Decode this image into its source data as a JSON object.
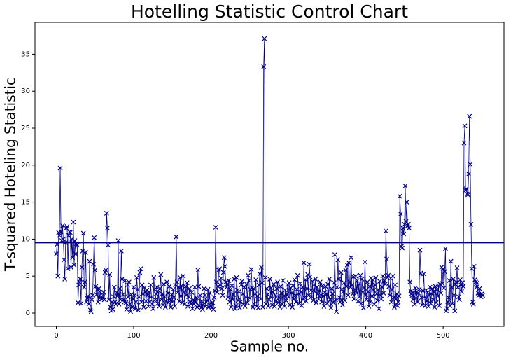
{
  "chart_data": {
    "type": "line",
    "title": "Hotelling Statistic Control Chart",
    "xlabel": "Sample no.",
    "ylabel": "T-squared Hoteling Statistic",
    "xlim": [
      -27.6,
      578.6
    ],
    "ylim": [
      -1.8,
      39.3
    ],
    "xticks": [
      0,
      100,
      200,
      300,
      400,
      500
    ],
    "yticks": [
      0,
      5,
      10,
      15,
      20,
      25,
      30,
      35
    ],
    "hline": 9.5,
    "hline_color": "#00007f",
    "marker": "x",
    "series": [
      {
        "color": "#00008b",
        "x": [
          0,
          1,
          2,
          3,
          4,
          5,
          6,
          7,
          8,
          9,
          10,
          11,
          12,
          13,
          14,
          15,
          16,
          17,
          18,
          19,
          20,
          21,
          22,
          23,
          24,
          25,
          26,
          27,
          28,
          29,
          30,
          31,
          32,
          33,
          34,
          35,
          36,
          37,
          38,
          39,
          40,
          41,
          42,
          43,
          44,
          45,
          46,
          47,
          48,
          49,
          50,
          51,
          52,
          53,
          54,
          55,
          56,
          57,
          58,
          59,
          60,
          61,
          62,
          63,
          64,
          65,
          66,
          67,
          68,
          69,
          70,
          71,
          72,
          73,
          74,
          75,
          76,
          77,
          78,
          79,
          80,
          81,
          82,
          83,
          84,
          85,
          86,
          87,
          88,
          89,
          90,
          91,
          92,
          93,
          94,
          95,
          96,
          97,
          98,
          99,
          100,
          101,
          102,
          103,
          104,
          105,
          106,
          107,
          108,
          109,
          110,
          111,
          112,
          113,
          114,
          115,
          116,
          117,
          118,
          119,
          120,
          121,
          122,
          123,
          124,
          125,
          126,
          127,
          128,
          129,
          130,
          131,
          132,
          133,
          134,
          135,
          136,
          137,
          138,
          139,
          140,
          141,
          142,
          143,
          144,
          145,
          146,
          147,
          148,
          149,
          150,
          151,
          152,
          153,
          154,
          155,
          156,
          157,
          158,
          159,
          160,
          161,
          162,
          163,
          164,
          165,
          166,
          167,
          168,
          169,
          170,
          171,
          172,
          173,
          174,
          175,
          176,
          177,
          178,
          179,
          180,
          181,
          182,
          183,
          184,
          185,
          186,
          187,
          188,
          189,
          190,
          191,
          192,
          193,
          194,
          195,
          196,
          197,
          198,
          199,
          200,
          201,
          202,
          203,
          204,
          205,
          206,
          207,
          208,
          209,
          210,
          211,
          212,
          213,
          214,
          215,
          216,
          217,
          218,
          219,
          220,
          221,
          222,
          223,
          224,
          225,
          226,
          227,
          228,
          229,
          230,
          231,
          232,
          233,
          234,
          235,
          236,
          237,
          238,
          239,
          240,
          241,
          242,
          243,
          244,
          245,
          246,
          247,
          248,
          249,
          250,
          251,
          252,
          253,
          254,
          255,
          256,
          257,
          258,
          259,
          260,
          261,
          262,
          263,
          264,
          265,
          266,
          267,
          268,
          269,
          270,
          271,
          272,
          273,
          274,
          275,
          276,
          277,
          278,
          279,
          280,
          281,
          282,
          283,
          284,
          285,
          286,
          287,
          288,
          289,
          290,
          291,
          292,
          293,
          294,
          295,
          296,
          297,
          298,
          299,
          300,
          301,
          302,
          303,
          304,
          305,
          306,
          307,
          308,
          309,
          310,
          311,
          312,
          313,
          314,
          315,
          316,
          317,
          318,
          319,
          320,
          321,
          322,
          323,
          324,
          325,
          326,
          327,
          328,
          329,
          330,
          331,
          332,
          333,
          334,
          335,
          336,
          337,
          338,
          339,
          340,
          341,
          342,
          343,
          344,
          345,
          346,
          347,
          348,
          349,
          350,
          351,
          352,
          353,
          354,
          355,
          356,
          357,
          358,
          359,
          360,
          361,
          362,
          363,
          364,
          365,
          366,
          367,
          368,
          369,
          370,
          371,
          372,
          373,
          374,
          375,
          376,
          377,
          378,
          379,
          380,
          381,
          382,
          383,
          384,
          385,
          386,
          387,
          388,
          389,
          390,
          391,
          392,
          393,
          394,
          395,
          396,
          397,
          398,
          399,
          400,
          401,
          402,
          403,
          404,
          405,
          406,
          407,
          408,
          409,
          410,
          411,
          412,
          413,
          414,
          415,
          416,
          417,
          418,
          419,
          420,
          421,
          422,
          423,
          424,
          425,
          426,
          427,
          428,
          429,
          430,
          431,
          432,
          433,
          434,
          435,
          436,
          437,
          438,
          439,
          440,
          441,
          442,
          443,
          444,
          445,
          446,
          447,
          448,
          449,
          450,
          451,
          452,
          453,
          454,
          455,
          456,
          457,
          458,
          459,
          460,
          461,
          462,
          463,
          464,
          465,
          466,
          467,
          468,
          469,
          470,
          471,
          472,
          473,
          474,
          475,
          476,
          477,
          478,
          479,
          480,
          481,
          482,
          483,
          484,
          485,
          486,
          487,
          488,
          489,
          490,
          491,
          492,
          493,
          494,
          495,
          496,
          497,
          498,
          499,
          500,
          501,
          502,
          503,
          504,
          505,
          506,
          507,
          508,
          509,
          510,
          511,
          512,
          513,
          514,
          515,
          516,
          517,
          518,
          519,
          520,
          521,
          522,
          523,
          524,
          525,
          526,
          527,
          528,
          529,
          530,
          531,
          532,
          533,
          534,
          535,
          536,
          537,
          538,
          539,
          540,
          541,
          542,
          543,
          544,
          545,
          546,
          547,
          548,
          549,
          550,
          551
        ],
        "values": [
          8,
          9.3,
          5,
          10.9,
          10.5,
          19.6,
          11,
          9.8,
          11.8,
          10,
          7.2,
          4.6,
          9.5,
          11.5,
          11.7,
          6,
          10.5,
          11,
          10.9,
          6.2,
          10,
          7.5,
          12.3,
          6.5,
          9.8,
          8,
          9.4,
          9.2,
          1.4,
          3.8,
          4.2,
          4.6,
          1.3,
          6.2,
          8.4,
          10.8,
          3.5,
          4.2,
          8.2,
          1.5,
          2,
          2.3,
          1.2,
          7,
          0.4,
          0.2,
          1.8,
          2.4,
          6.6,
          10.2,
          5.8,
          3.6,
          2.5,
          3.2,
          1.5,
          3.3,
          2,
          2.8,
          2.2,
          1.9,
          2.1,
          2.8,
          1.8,
          5.5,
          5.8,
          13.5,
          11.5,
          9.2,
          1.8,
          5.2,
          0.8,
          0.3,
          1.5,
          0.5,
          2.2,
          3.5,
          1.5,
          1.2,
          2.8,
          2.3,
          9.8,
          1.2,
          3.3,
          1.8,
          8.4,
          4.6,
          2.5,
          1.8,
          1.5,
          4.4,
          1.4,
          0.5,
          3.8,
          2.2,
          4.2,
          1.2,
          0.2,
          2.5,
          0.8,
          1.9,
          3.5,
          2.4,
          0.6,
          1.5,
          4.8,
          3.2,
          0.4,
          2.2,
          5.5,
          6,
          1.5,
          3.8,
          2.6,
          0.8,
          3.4,
          2.8,
          1.6,
          3.1,
          2.4,
          0.9,
          2.9,
          1.5,
          3.8,
          2.2,
          1.2,
          0.6,
          4.8,
          3.2,
          1.8,
          2.6,
          3.5,
          1.3,
          2.8,
          0.9,
          3.3,
          5.2,
          1.8,
          2.6,
          1.1,
          3.9,
          2.2,
          0.8,
          1.6,
          4.2,
          2.7,
          1.4,
          3.6,
          1.9,
          0.8,
          2.5,
          1.5,
          3.2,
          2.1,
          0.9,
          3.8,
          10.3,
          4.2,
          2.8,
          3.5,
          1.6,
          4.8,
          2.3,
          3.7,
          1.4,
          5,
          2.9,
          1.2,
          3.6,
          2.4,
          4.1,
          0.9,
          2.2,
          3.3,
          1.5,
          1.2,
          2.8,
          0.6,
          1.8,
          1.2,
          3.5,
          1.4,
          2.1,
          0.8,
          5.8,
          3.6,
          1,
          2.4,
          0.7,
          1.6,
          0.5,
          1.1,
          3.3,
          2.4,
          0.9,
          1.5,
          1.7,
          3.2,
          0.8,
          2.7,
          1.3,
          0.9,
          0.7,
          1.4,
          0.5,
          2.1,
          3,
          11.6,
          4.2,
          2.8,
          3.6,
          5.8,
          6,
          3.8,
          4.7,
          3.3,
          2.4,
          5.5,
          7.5,
          6.3,
          4.2,
          3.5,
          3.9,
          2.1,
          4.4,
          1.5,
          3.2,
          0.8,
          3.7,
          1.8,
          2.5,
          4.6,
          0.6,
          1,
          4.8,
          3.1,
          1.7,
          2.9,
          0.7,
          1.5,
          3.8,
          4.3,
          2.6,
          1.2,
          3.5,
          0.9,
          2.2,
          3.9,
          1.4,
          5.1,
          4.4,
          2,
          3.2,
          5.9,
          3.4,
          0.8,
          3.3,
          1.2,
          2.6,
          4.5,
          0.9,
          2.3,
          0.7,
          3.8,
          5.3,
          1.9,
          6.2,
          4.1,
          0.8,
          33.3,
          37.1,
          4.8,
          1.2,
          3.3,
          2.5,
          0.9,
          1.8,
          4.6,
          2.2,
          3.4,
          1.1,
          2.8,
          3.9,
          0.9,
          2.4,
          1.6,
          3.3,
          4.2,
          1.4,
          2.1,
          0.8,
          3.6,
          2.7,
          1.2,
          4.4,
          2.3,
          0.9,
          3.1,
          1.7,
          2.5,
          3.8,
          2.2,
          4.1,
          1.1,
          3.4,
          2.7,
          0.8,
          3.7,
          1.9,
          4.5,
          2.4,
          1.5,
          3.2,
          5.1,
          2.6,
          1.3,
          4,
          2.8,
          1,
          3.5,
          1.8,
          6.8,
          2.1,
          4.5,
          1.6,
          3.3,
          5.2,
          2.4,
          6.6,
          4.9,
          3.1,
          2.2,
          4.3,
          1.7,
          3.8,
          2.9,
          4.6,
          1.4,
          3.5,
          2.6,
          1.9,
          3,
          4.2,
          2.4,
          1.5,
          3.7,
          2.3,
          0.9,
          2.8,
          3.6,
          2.5,
          1.3,
          3.9,
          2.2,
          4.6,
          1.8,
          0.7,
          3.3,
          2.6,
          1.4,
          4.1,
          7.9,
          1.8,
          0.2,
          3.5,
          7.2,
          4.6,
          2.1,
          1.5,
          5.5,
          3.2,
          1.1,
          2.9,
          4.1,
          1.7,
          5.8,
          3.6,
          6.5,
          2.4,
          6.8,
          4.2,
          3.5,
          7.5,
          3.8,
          2.6,
          4.9,
          1.9,
          3.2,
          5,
          2.7,
          4.4,
          1.6,
          3.9,
          2.2,
          5.1,
          1.3,
          4.6,
          2.8,
          0.7,
          3.4,
          6.9,
          2.5,
          1.8,
          4.2,
          2.9,
          0.9,
          3.6,
          1.5,
          4.7,
          2.3,
          4.5,
          3.1,
          1.2,
          3.8,
          4.8,
          2.6,
          1.7,
          3.2,
          0.6,
          4.3,
          2.4,
          1.9,
          3.5,
          5,
          2.7,
          4.4,
          3.9,
          11.1,
          7.3,
          4.8,
          5.1,
          3.6,
          2.4,
          4.7,
          1.5,
          3.2,
          5,
          2.1,
          0.8,
          3.8,
          1.9,
          2.6,
          1,
          1.5,
          2.3,
          15.8,
          13.4,
          9,
          8.8,
          11.5,
          10.7,
          12,
          17.2,
          12.4,
          15,
          11.8,
          12,
          11.5,
          4.2,
          3,
          2.6,
          2.4,
          1.8,
          2.8,
          1.2,
          3.4,
          2,
          2.9,
          1.5,
          2.7,
          3.2,
          8.5,
          5.4,
          2.1,
          1.1,
          3,
          5.3,
          2.2,
          1,
          3.1,
          1.6,
          2.8,
          0.9,
          2.4,
          3.5,
          1.3,
          2.6,
          3.3,
          1.8,
          2.9,
          0.8,
          3.6,
          1.4,
          3.2,
          2.3,
          3.7,
          1,
          3.9,
          2.7,
          6.2,
          4,
          6,
          3.4,
          5.6,
          8.7,
          0.3,
          0.6,
          1.5,
          2.1,
          4.4,
          1,
          7,
          3.5,
          1.3,
          4.6,
          2.4,
          0.3,
          3.9,
          4.2,
          6.1,
          3.5,
          2.2,
          1.8,
          4.5,
          3.8,
          2.9,
          4.1,
          3.6,
          23,
          25.3,
          16.6,
          16.8,
          16.1,
          16,
          18.8,
          26.6,
          20.1,
          12,
          6,
          1.5,
          1.2,
          6.3,
          4.5,
          4.2,
          3.5,
          4.1,
          2.7,
          2.4,
          3.3,
          2.5,
          2.2,
          2.6,
          2.4
        ]
      }
    ]
  }
}
